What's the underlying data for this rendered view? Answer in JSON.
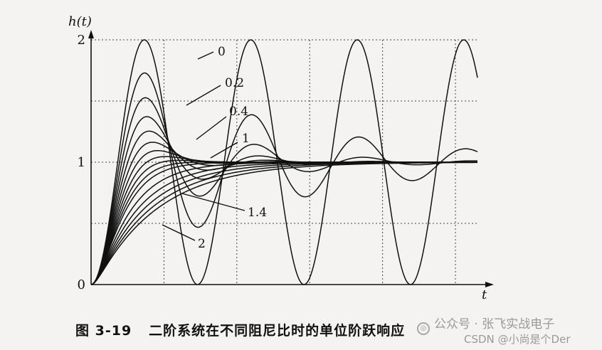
{
  "chart_data": {
    "type": "line",
    "title": "",
    "ylabel": "h(t)",
    "xlabel": "t",
    "xlim": [
      0,
      22.8
    ],
    "ylim": [
      0,
      2
    ],
    "y_ticks": [
      "0",
      "1",
      "2"
    ],
    "grid": true,
    "grid_style": "dotted",
    "x_grid": [
      4.3,
      8.6,
      12.9,
      17.2,
      21.5
    ],
    "y_grid": [
      0.5,
      1,
      1.5,
      2
    ],
    "damping_ratios": [
      0,
      0.1,
      0.2,
      0.3,
      0.4,
      0.5,
      0.6,
      0.7,
      0.8,
      0.9,
      1,
      1.2,
      1.4,
      1.6,
      1.8,
      2
    ],
    "series_labels": [
      {
        "text": "0",
        "zeta": 0
      },
      {
        "text": "0.2",
        "zeta": 0.2
      },
      {
        "text": "0.4",
        "zeta": 0.4
      },
      {
        "text": "1",
        "zeta": 1
      },
      {
        "text": "1.4",
        "zeta": 1.4
      },
      {
        "text": "2",
        "zeta": 2
      }
    ]
  },
  "caption": {
    "figure_number": "图 3-19",
    "title": "二阶系统在不同阻尼比时的单位阶跃响应"
  },
  "watermark": {
    "line1": "公众号 · 张飞实战电子",
    "line2": "CSDN @小尚是个Der"
  }
}
